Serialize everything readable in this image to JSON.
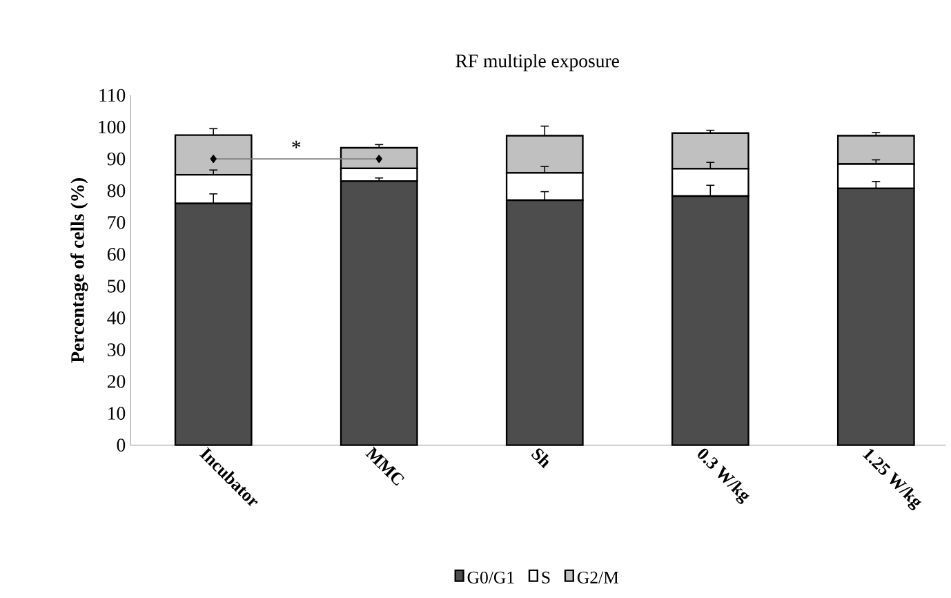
{
  "chart_data": {
    "type": "bar",
    "title": "RF multiple exposure",
    "ylabel": "Percentage of cells (%)",
    "categories": [
      "Incubator",
      "MMC",
      "Sh",
      "0.3 W/kg",
      "1.25 W/kg"
    ],
    "stacked": true,
    "series": [
      {
        "name": "G0/G1",
        "color": "#4d4d4d",
        "values": [
          76,
          83,
          77,
          78.3,
          80.7
        ],
        "errors": [
          [
            76,
            79
          ],
          [
            83,
            84
          ],
          [
            77,
            79.7
          ],
          [
            78.3,
            81.7
          ],
          [
            80.7,
            82.9
          ]
        ]
      },
      {
        "name": "S",
        "color": "#ffffff",
        "values": [
          9,
          4,
          8.6,
          8.6,
          7.7
        ],
        "errors": [
          [
            85,
            86.5
          ],
          null,
          [
            85.6,
            87.6
          ],
          [
            86.9,
            88.9
          ],
          [
            88.4,
            89.7
          ]
        ]
      },
      {
        "name": "G2/M",
        "color": "#c0c0c0",
        "values": [
          12.5,
          6.5,
          11.7,
          11.2,
          8.9
        ],
        "errors": [
          [
            97.5,
            99.5
          ],
          [
            93.5,
            94.5
          ],
          [
            97.3,
            100.3
          ],
          [
            98.1,
            99
          ],
          [
            97.3,
            98.3
          ]
        ]
      },
      {
        "type": "line",
        "color": "#808080",
        "marker": "diamond",
        "values": [
          90,
          90,
          null,
          null,
          null
        ]
      }
    ],
    "annotations": [
      "*"
    ],
    "ylim": [
      0,
      110
    ],
    "yticks": [
      0,
      10,
      20,
      30,
      40,
      50,
      60,
      70,
      80,
      90,
      100,
      110
    ],
    "legend": "bottom",
    "grid": false
  }
}
